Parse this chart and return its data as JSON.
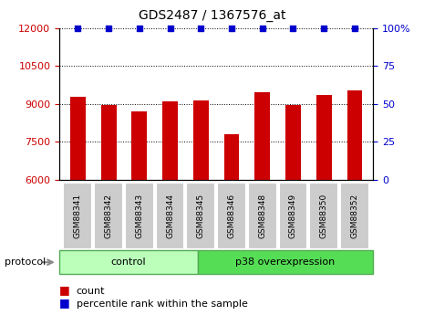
{
  "title": "GDS2487 / 1367576_at",
  "samples": [
    "GSM88341",
    "GSM88342",
    "GSM88343",
    "GSM88344",
    "GSM88345",
    "GSM88346",
    "GSM88348",
    "GSM88349",
    "GSM88350",
    "GSM88352"
  ],
  "counts": [
    9300,
    8950,
    8700,
    9100,
    9150,
    7800,
    9450,
    8950,
    9350,
    9550
  ],
  "percentile_ranks": [
    100,
    100,
    100,
    100,
    100,
    100,
    100,
    100,
    100,
    100
  ],
  "ylim_left": [
    6000,
    12000
  ],
  "ylim_right": [
    0,
    100
  ],
  "yticks_left": [
    6000,
    7500,
    9000,
    10500,
    12000
  ],
  "yticks_right": [
    0,
    25,
    50,
    75,
    100
  ],
  "bar_color": "#cc0000",
  "dot_color": "#0000cc",
  "control_samples": 5,
  "control_label": "control",
  "treatment_label": "p38 overexpression",
  "control_color": "#bbffbb",
  "treatment_color": "#55dd55",
  "left_axis_color": "#cc0000",
  "right_axis_color": "#0000cc",
  "bar_width": 0.5,
  "protocol_label": "protocol",
  "legend_count_label": "count",
  "legend_percentile_label": "percentile rank within the sample",
  "xtick_bg": "#cccccc",
  "fig_width": 4.65,
  "fig_height": 3.45,
  "dpi": 100
}
